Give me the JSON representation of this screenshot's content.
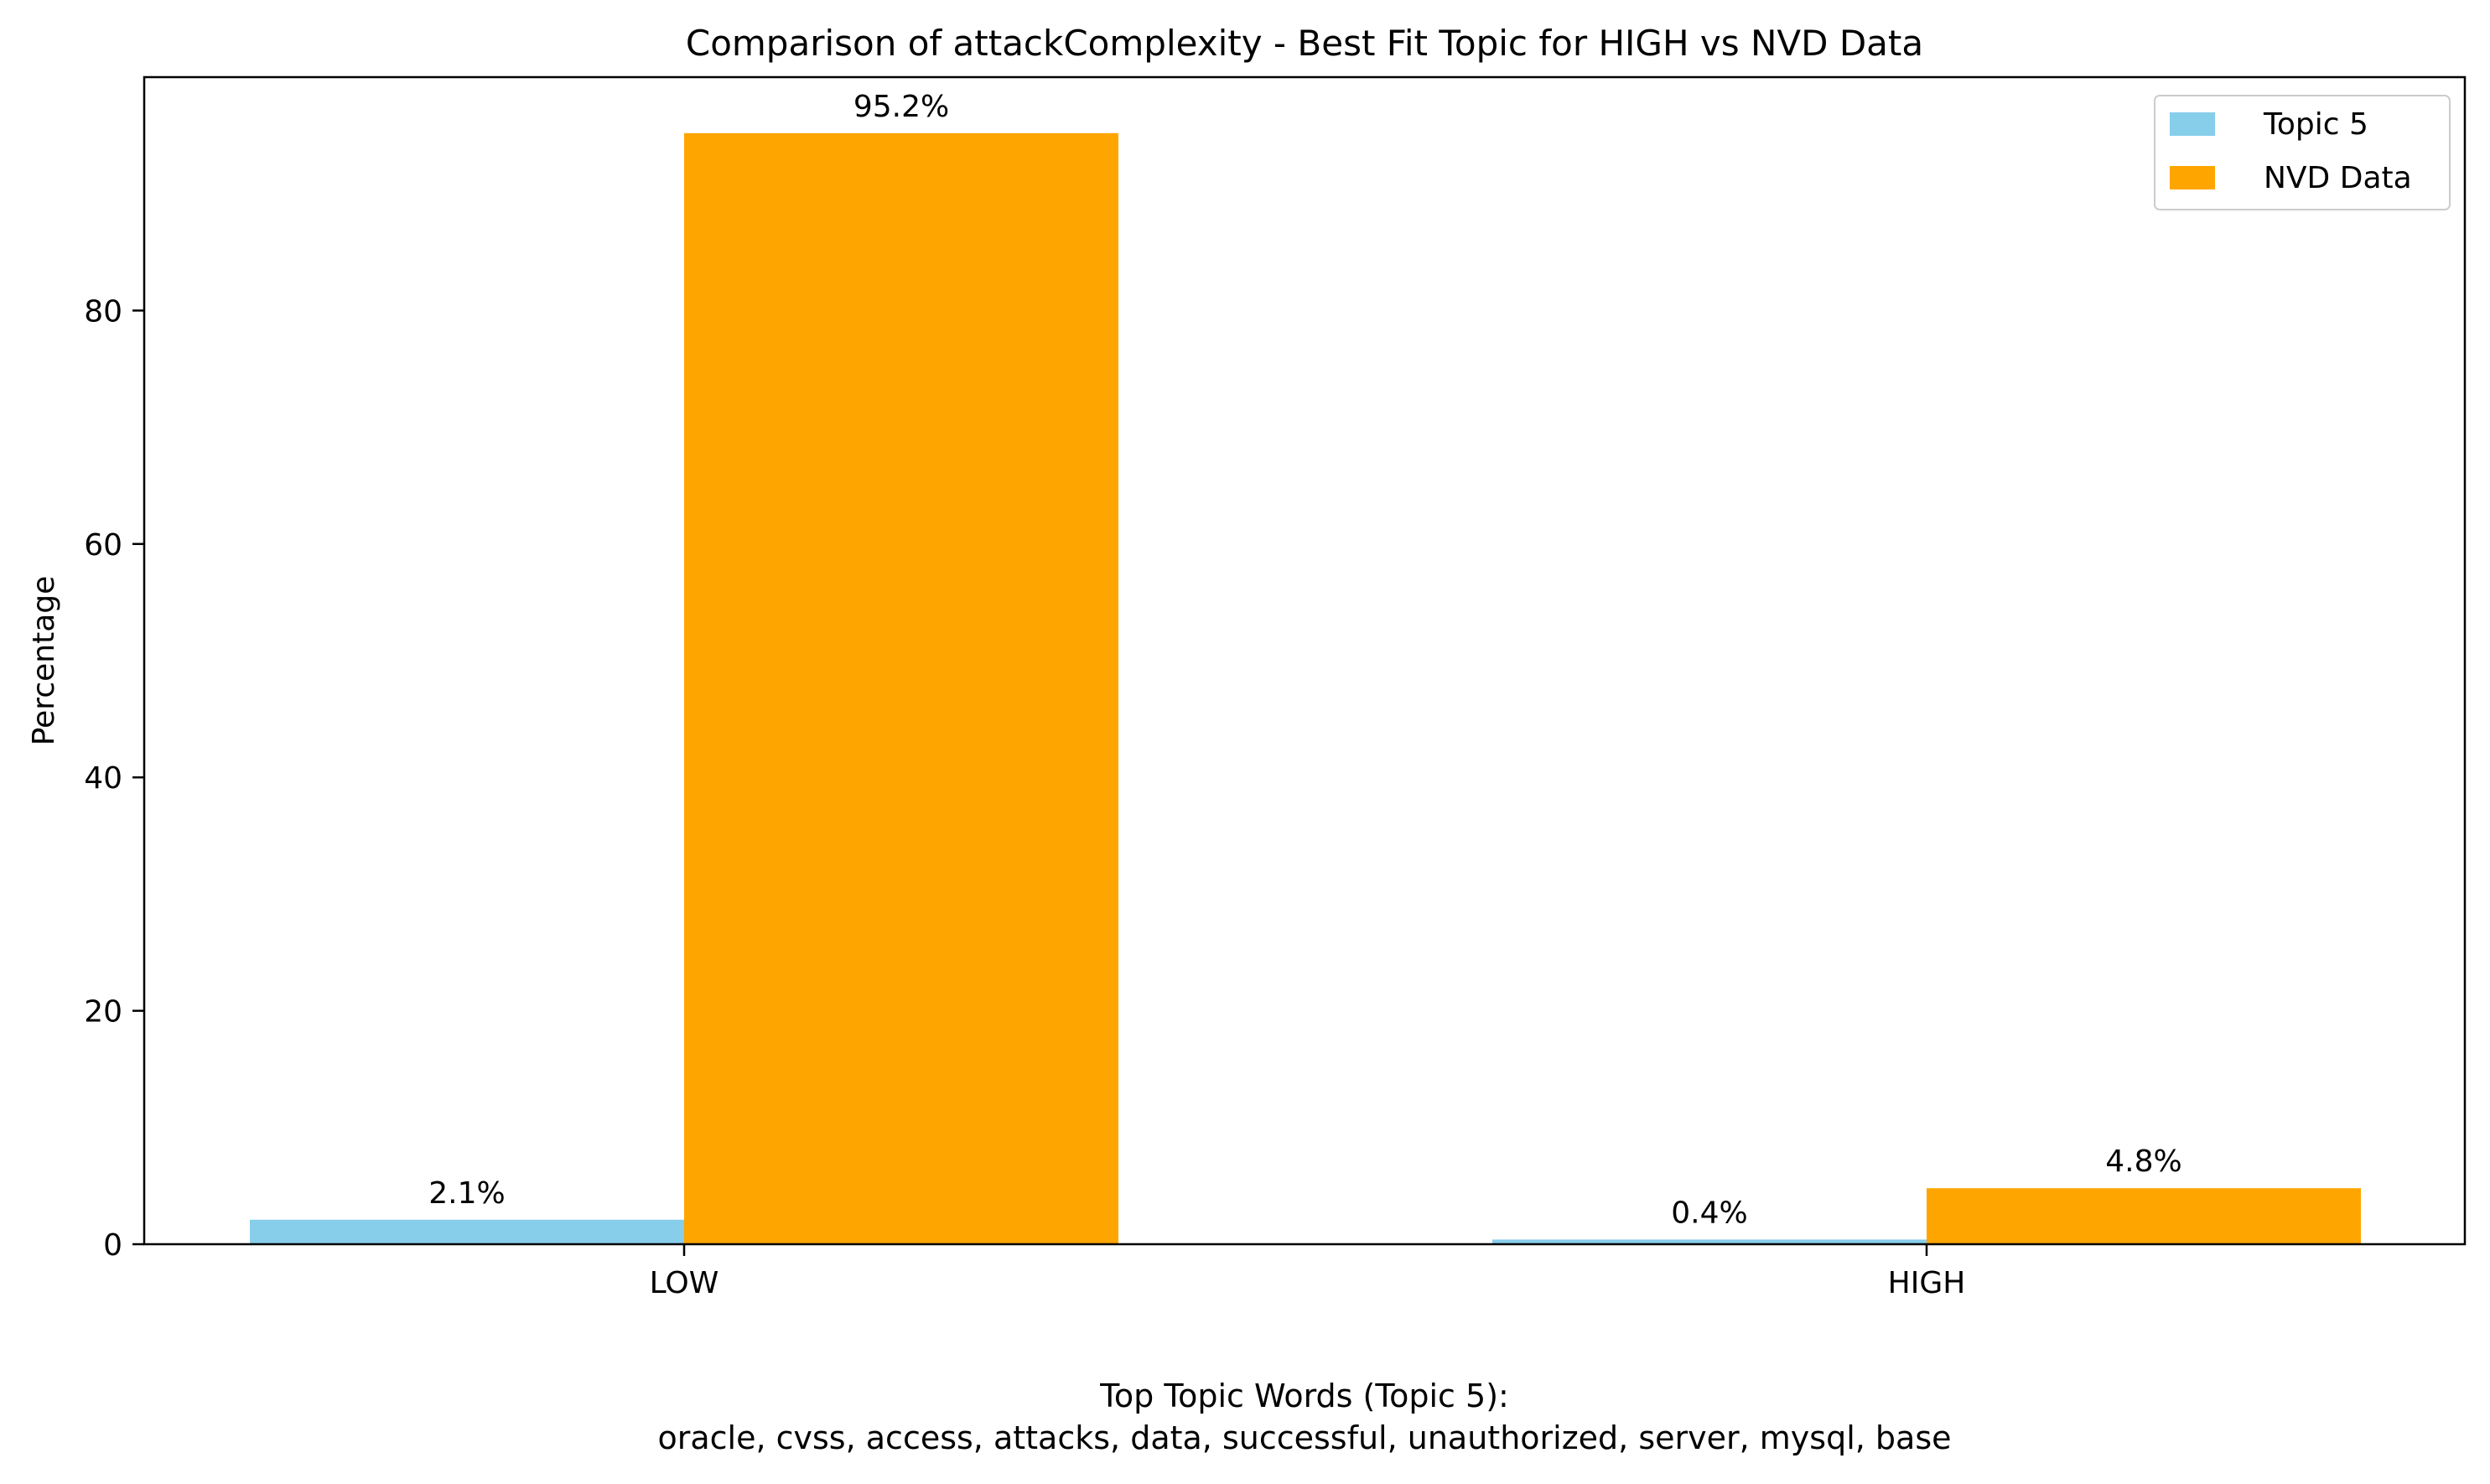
{
  "chart_data": {
    "type": "bar",
    "title": "Comparison of attackComplexity - Best Fit Topic for HIGH vs NVD Data",
    "xlabel": "",
    "ylabel": "Percentage",
    "categories": [
      "LOW",
      "HIGH"
    ],
    "series": [
      {
        "name": "Topic 5",
        "color": "#87CEEB",
        "values": [
          2.1,
          0.4
        ],
        "labels": [
          "2.1%",
          "0.4%"
        ]
      },
      {
        "name": "NVD Data",
        "color": "#FFA500",
        "values": [
          95.2,
          4.8
        ],
        "labels": [
          "95.2%",
          "4.8%"
        ]
      }
    ],
    "ylim": [
      0,
      100
    ],
    "yticks": [
      0,
      20,
      40,
      60,
      80
    ],
    "grid": false,
    "legend_position": "top-right",
    "footer": {
      "line1": "Top Topic Words (Topic 5):",
      "line2": "oracle,  cvss,  access,  attacks,  data,  successful,  unauthorized,  server,  mysql,  base"
    }
  }
}
